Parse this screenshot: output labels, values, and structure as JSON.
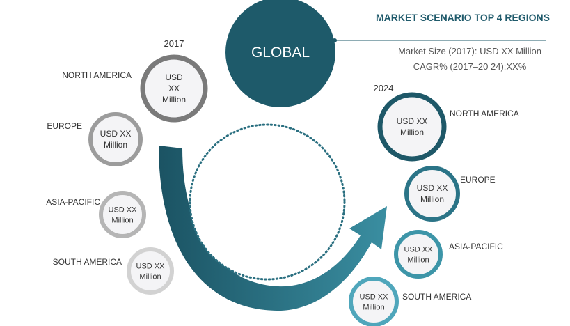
{
  "header": {
    "title": "MARKET SCENARIO TOP 4 REGIONS",
    "market_size": "Market Size (2017): USD XX Million",
    "cagr": "CAGR% (2017–20 24):XX%"
  },
  "center": {
    "label": "GLOBAL"
  },
  "year_left": "2017",
  "year_right": "2024",
  "left_regions": [
    {
      "name": "NORTH AMERICA",
      "lines": [
        "USD",
        "XX",
        "Million"
      ],
      "ring_color": "#7a7a7a"
    },
    {
      "name": "EUROPE",
      "lines": [
        "USD XX",
        "Million"
      ],
      "ring_color": "#9c9c9c"
    },
    {
      "name": "ASIA-PACIFIC",
      "lines": [
        "USD XX",
        "Million"
      ],
      "ring_color": "#b5b5b5"
    },
    {
      "name": "SOUTH AMERICA",
      "lines": [
        "USD XX",
        "Million"
      ],
      "ring_color": "#d2d2d2"
    }
  ],
  "right_regions": [
    {
      "name": "NORTH AMERICA",
      "lines": [
        "USD XX",
        "Million"
      ],
      "ring_color": "#1e5868"
    },
    {
      "name": "EUROPE",
      "lines": [
        "USD XX",
        "Million"
      ],
      "ring_color": "#2b7487"
    },
    {
      "name": "ASIA-PACIFIC",
      "lines": [
        "USD XX",
        "Million"
      ],
      "ring_color": "#3d95a8"
    },
    {
      "name": "SOUTH AMERICA",
      "lines": [
        "USD XX",
        "Million"
      ],
      "ring_color": "#4fa6bb"
    }
  ],
  "colors": {
    "global": "#1e5a6a",
    "arrow_dark": "#1b5363",
    "arrow_light": "#3a8ea1",
    "dotted": "#2a6f80"
  }
}
